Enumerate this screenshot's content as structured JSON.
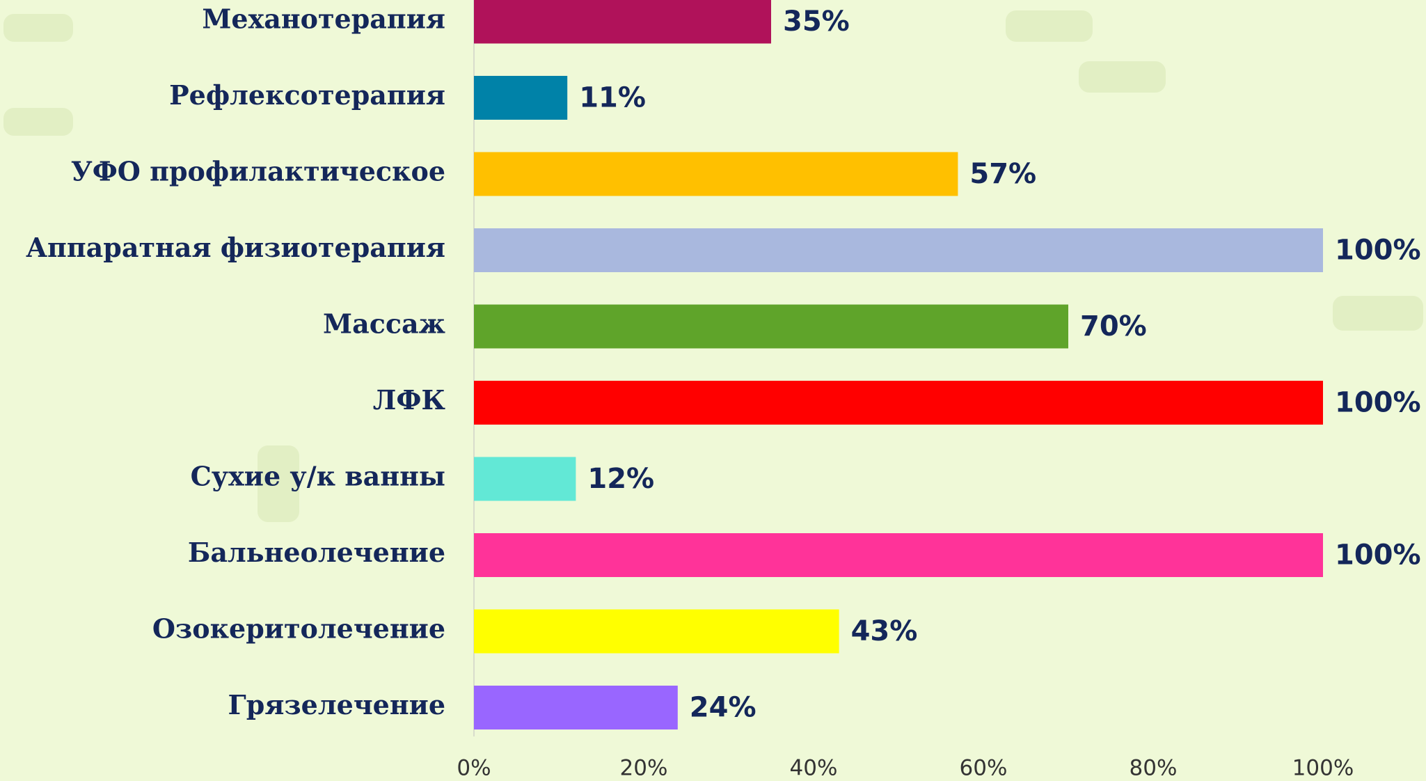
{
  "chart_data": {
    "type": "hbar",
    "categories": [
      "Механотерапия",
      "Рефлексотерапия",
      "УФО профилактическое",
      "Аппаратная физиотерапия",
      "Массаж",
      "ЛФК",
      "Сухие у/к ванны",
      "Бальнеолечение",
      "Озокеритолечение",
      "Грязелечение"
    ],
    "values": [
      35,
      11,
      57,
      100,
      70,
      100,
      12,
      100,
      43,
      24
    ],
    "value_labels": [
      "35%",
      "11%",
      "57%",
      "100%",
      "70%",
      "100%",
      "12%",
      "100%",
      "43%",
      "24%"
    ],
    "colors": [
      "#b0125a",
      "#0082a8",
      "#ffc000",
      "#a9b8de",
      "#5fa42a",
      "#ff0000",
      "#62e8d6",
      "#ff3399",
      "#ffff00",
      "#9966ff"
    ],
    "xlim": [
      0,
      100
    ],
    "xticks": [
      {
        "value": 0,
        "label": "0%"
      },
      {
        "value": 20,
        "label": "20%"
      },
      {
        "value": 40,
        "label": "40%"
      },
      {
        "value": 60,
        "label": "60%"
      },
      {
        "value": 80,
        "label": "80%"
      },
      {
        "value": 100,
        "label": "100%"
      }
    ]
  }
}
